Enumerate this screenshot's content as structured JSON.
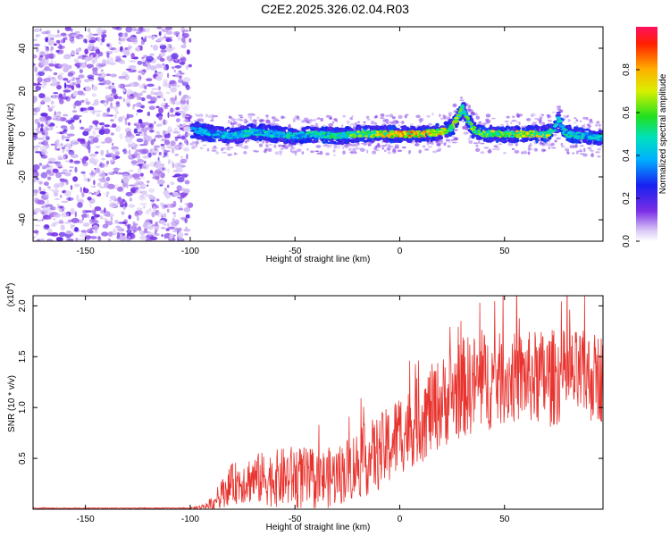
{
  "title": "C2E2.2025.326.02.04.R03",
  "chart_data": [
    {
      "type": "heatmap",
      "xlabel": "Height of straight line (km)",
      "ylabel": "Frequency (Hz)",
      "xlim": [
        -175,
        97
      ],
      "ylim": [
        -50,
        50
      ],
      "xticks": [
        -150,
        -100,
        -50,
        0,
        50
      ],
      "yticks": [
        -40,
        -20,
        0,
        20,
        40
      ],
      "noise_region_x": [
        -175,
        -100
      ],
      "ridge": {
        "x": [
          -98,
          -90,
          -80,
          -70,
          -60,
          -50,
          -40,
          -30,
          -20,
          -10,
          0,
          10,
          20,
          25,
          28,
          30,
          32,
          35,
          40,
          50,
          60,
          70,
          74,
          76,
          78,
          80,
          90,
          97
        ],
        "freq": [
          2,
          0,
          -1,
          1,
          0,
          -1,
          0,
          -1,
          0,
          0,
          0,
          0,
          1,
          3,
          8,
          12,
          8,
          2,
          0,
          0,
          0,
          0,
          2,
          7,
          2,
          0,
          -1,
          -2
        ],
        "strength": [
          0.45,
          0.5,
          0.5,
          0.55,
          0.5,
          0.55,
          0.55,
          0.6,
          0.7,
          0.8,
          0.95,
          0.9,
          0.85,
          0.8,
          0.7,
          0.6,
          0.65,
          0.7,
          0.75,
          0.75,
          0.85,
          0.75,
          0.65,
          0.5,
          0.6,
          0.55,
          0.5,
          0.5
        ]
      },
      "colorbar": {
        "label": "Normalized spectral amplitude",
        "range": [
          0,
          1
        ],
        "ticks": [
          "0.0",
          "0.2",
          "0.4",
          "0.6",
          "0.8"
        ]
      }
    },
    {
      "type": "line",
      "xlabel": "Height of straight line (km)",
      "ylabel": "SNR (10 * v/v)",
      "scale_label": "(x10",
      "scale_exp": "4",
      "scale_suffix": ")",
      "xlim": [
        -175,
        97
      ],
      "ylim": [
        0,
        2.1
      ],
      "xticks": [
        -150,
        -100,
        -50,
        0,
        50
      ],
      "yticks": [
        0.5,
        1.0,
        1.5,
        2.0
      ],
      "ytick_labels": [
        "0.5",
        "1.0",
        "1.5",
        "2.0"
      ],
      "color": "#e8332e",
      "envelope": {
        "x": [
          -175,
          -100,
          -95,
          -90,
          -85,
          -80,
          -70,
          -60,
          -50,
          -40,
          -30,
          -20,
          -10,
          -5,
          0,
          5,
          10,
          20,
          30,
          40,
          50,
          60,
          70,
          80,
          90,
          97
        ],
        "mean": [
          0.01,
          0.01,
          0.02,
          0.05,
          0.15,
          0.25,
          0.3,
          0.3,
          0.32,
          0.28,
          0.33,
          0.45,
          0.55,
          0.62,
          0.75,
          0.8,
          0.9,
          1.05,
          1.2,
          1.25,
          1.28,
          1.3,
          1.28,
          1.32,
          1.3,
          1.3
        ],
        "amp": [
          0.005,
          0.005,
          0.02,
          0.06,
          0.14,
          0.2,
          0.25,
          0.28,
          0.32,
          0.3,
          0.3,
          0.35,
          0.38,
          0.4,
          0.42,
          0.4,
          0.45,
          0.45,
          0.5,
          0.5,
          0.45,
          0.45,
          0.5,
          0.45,
          0.45,
          0.45
        ]
      }
    }
  ]
}
